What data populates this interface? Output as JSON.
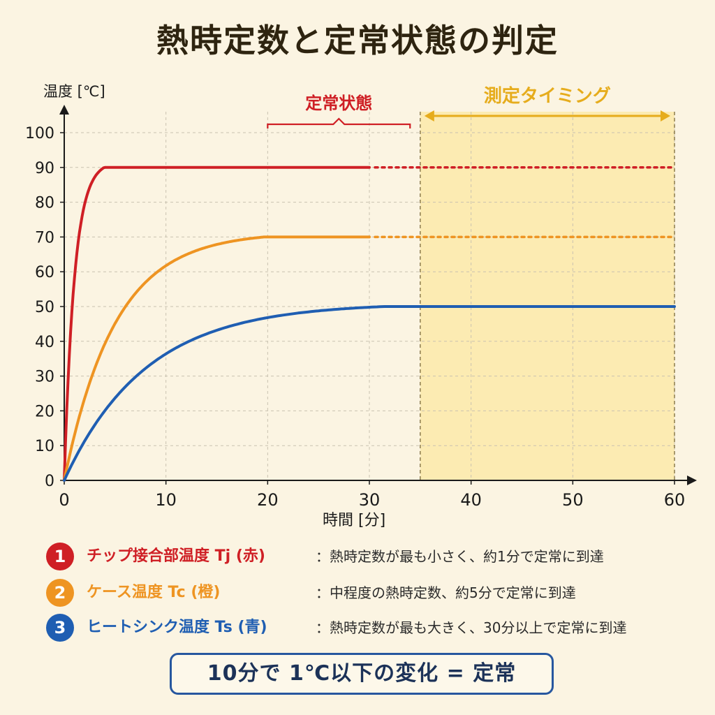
{
  "title": "熱時定数と定常状態の判定",
  "colors": {
    "tj": "#cf1f25",
    "tc": "#ee9422",
    "ts": "#1f5eb2",
    "measure": "#e6ac1c",
    "measure_fill": "#fbe9a9",
    "axis": "#1a1a1a",
    "background": "#fbf4e2"
  },
  "chart_data": {
    "type": "line",
    "xlabel": "時間 [分]",
    "ylabel": "温度 [℃]",
    "xlim": [
      0,
      60
    ],
    "ylim": [
      0,
      100
    ],
    "x_ticks": [
      0,
      10,
      20,
      30,
      40,
      50,
      60
    ],
    "y_ticks": [
      0,
      10,
      20,
      30,
      40,
      50,
      60,
      70,
      80,
      90,
      100
    ],
    "grid": true,
    "x_tick_labels": [
      "0",
      "10",
      "20",
      "30",
      "40",
      "50",
      "60"
    ],
    "y_tick_labels": [
      "0",
      "10",
      "20",
      "30",
      "40",
      "50",
      "60",
      "70",
      "80",
      "90",
      "100"
    ],
    "series": [
      {
        "name": "チップ接合部温度 Tj (赤)",
        "color": "#cf1f25",
        "steady_value": 90,
        "time_constant_min": 1,
        "x": [
          0,
          0.5,
          1,
          1.5,
          2,
          3,
          4,
          5,
          6,
          8,
          10,
          15,
          20,
          30
        ],
        "y": [
          0,
          35.4,
          56.9,
          70.0,
          77.8,
          85.5,
          88.4,
          89.4,
          89.8,
          90,
          90,
          90,
          90,
          90
        ],
        "dotted_to_x": 60
      },
      {
        "name": "ケース温度 Tc (橙)",
        "color": "#ee9422",
        "steady_value": 70,
        "time_constant_min": 5,
        "x": [
          0,
          1,
          2,
          3,
          4,
          5,
          6,
          8,
          10,
          12,
          15,
          18,
          20,
          25,
          30
        ],
        "y": [
          0,
          12.7,
          23.1,
          31.6,
          38.6,
          44.2,
          48.9,
          55.9,
          60.5,
          63.6,
          66.5,
          68.0,
          68.7,
          69.5,
          70
        ],
        "dotted_to_x": 60
      },
      {
        "name": "ヒートシンク温度 Ts (青)",
        "color": "#1f5eb2",
        "steady_value": 50,
        "time_constant_min": 8,
        "x": [
          0,
          2,
          5,
          8,
          10,
          15,
          20,
          25,
          30,
          35,
          40,
          50,
          60
        ],
        "y": [
          0,
          11.1,
          23.2,
          31.6,
          35.7,
          42.3,
          45.9,
          48.2,
          49.3,
          50,
          50,
          50,
          50
        ]
      }
    ],
    "annotations": {
      "steady_bracket": {
        "label": "定常状態",
        "x_range": [
          20,
          34
        ]
      },
      "measure_window": {
        "label": "測定タイミング",
        "x_range": [
          35,
          60
        ]
      }
    }
  },
  "legend": [
    {
      "num": "1",
      "name": "チップ接合部温度 Tj (赤)",
      "desc": "：熱時定数が最も小さく、約1分で定常に到達",
      "color": "#cf1f25"
    },
    {
      "num": "2",
      "name": "ケース温度 Tc (橙)",
      "desc": "：中程度の熱時定数、約5分で定常に到達",
      "color": "#ee9422"
    },
    {
      "num": "3",
      "name": "ヒートシンク温度 Ts (青)",
      "desc": "：熱時定数が最も大きく、30分以上で定常に到達",
      "color": "#1f5eb2"
    }
  ],
  "conclusion": "10分で 1℃以下の変化 = 定常"
}
